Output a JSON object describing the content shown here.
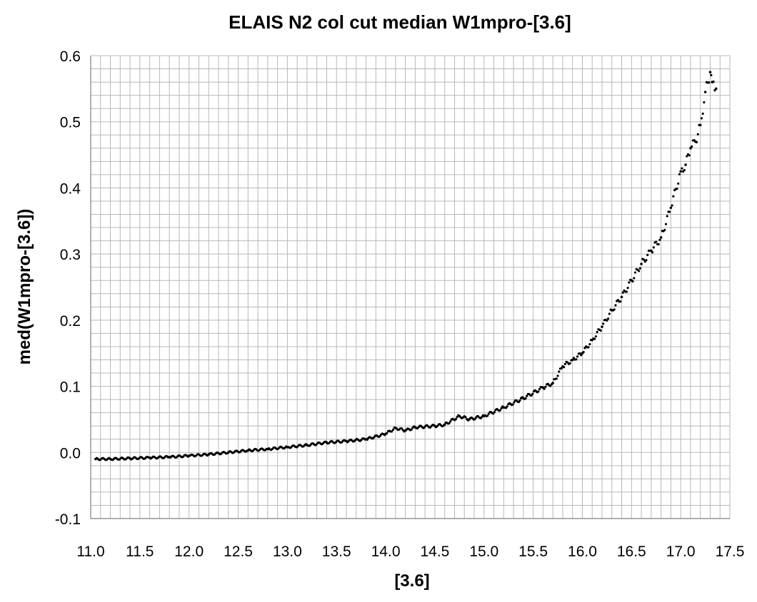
{
  "chart_data": {
    "type": "scatter",
    "title": "ELAIS N2 col cut median W1mpro-[3.6]",
    "xlabel": "[3.6]",
    "ylabel": "med(W1mpro-[3.6])",
    "xlim": [
      11.0,
      17.5
    ],
    "ylim": [
      -0.1,
      0.6
    ],
    "x_ticks": [
      "11.0",
      "11.5",
      "12.0",
      "12.5",
      "13.0",
      "13.5",
      "14.0",
      "14.5",
      "15.0",
      "15.5",
      "16.0",
      "16.5",
      "17.0",
      "17.5"
    ],
    "y_ticks": [
      "-0.1",
      "0.0",
      "0.1",
      "0.2",
      "0.3",
      "0.4",
      "0.5",
      "0.6"
    ],
    "grid": "on",
    "minor_grid": "on",
    "legend": "none",
    "marker_color": "#000000",
    "grid_color": "#b8b8b8",
    "series": [
      {
        "points": [
          [
            11.05,
            -0.01
          ],
          [
            11.2,
            -0.01
          ],
          [
            11.4,
            -0.009
          ],
          [
            11.6,
            -0.008
          ],
          [
            11.8,
            -0.007
          ],
          [
            12.0,
            -0.005
          ],
          [
            12.2,
            -0.003
          ],
          [
            12.4,
            0.0
          ],
          [
            12.6,
            0.003
          ],
          [
            12.8,
            0.005
          ],
          [
            13.0,
            0.008
          ],
          [
            13.2,
            0.011
          ],
          [
            13.4,
            0.015
          ],
          [
            13.6,
            0.017
          ],
          [
            13.8,
            0.02
          ],
          [
            14.0,
            0.028
          ],
          [
            14.1,
            0.037
          ],
          [
            14.2,
            0.033
          ],
          [
            14.3,
            0.038
          ],
          [
            14.5,
            0.04
          ],
          [
            14.6,
            0.042
          ],
          [
            14.75,
            0.055
          ],
          [
            14.85,
            0.05
          ],
          [
            15.0,
            0.055
          ],
          [
            15.2,
            0.068
          ],
          [
            15.4,
            0.082
          ],
          [
            15.6,
            0.098
          ],
          [
            15.7,
            0.105
          ],
          [
            15.8,
            0.13
          ],
          [
            15.9,
            0.14
          ],
          [
            16.0,
            0.15
          ],
          [
            16.1,
            0.17
          ],
          [
            16.2,
            0.19
          ],
          [
            16.3,
            0.215
          ],
          [
            16.4,
            0.235
          ],
          [
            16.5,
            0.26
          ],
          [
            16.6,
            0.285
          ],
          [
            16.7,
            0.305
          ],
          [
            16.8,
            0.325
          ],
          [
            16.9,
            0.37
          ],
          [
            17.0,
            0.425
          ],
          [
            17.05,
            0.435
          ],
          [
            17.1,
            0.46
          ],
          [
            17.15,
            0.47
          ],
          [
            17.2,
            0.495
          ],
          [
            17.25,
            0.545
          ],
          [
            17.3,
            0.575
          ],
          [
            17.32,
            0.56
          ],
          [
            17.36,
            0.55
          ]
        ]
      }
    ]
  }
}
